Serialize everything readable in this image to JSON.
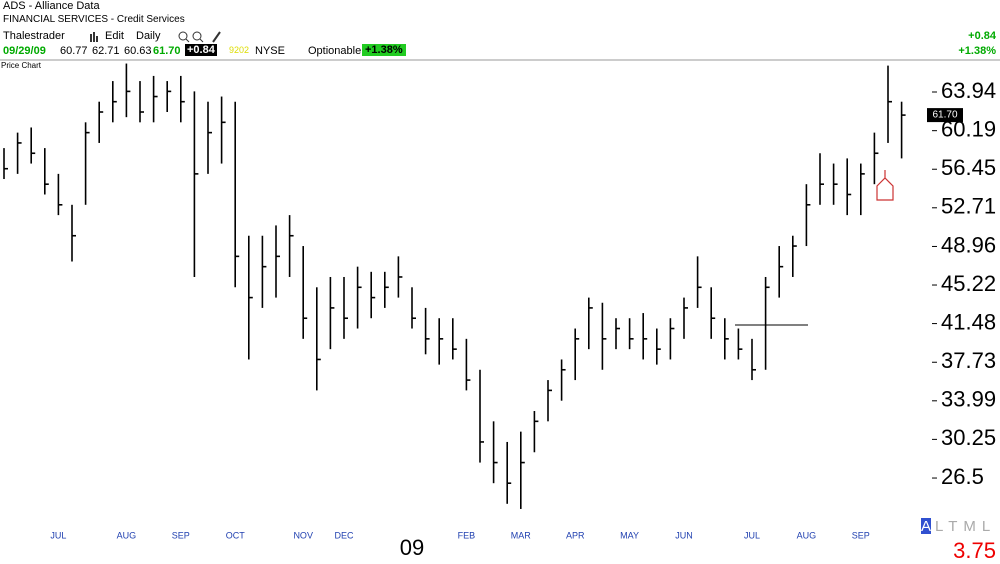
{
  "header": {
    "symbol": "ADS - Alliance Data",
    "industry": "FINANCIAL SERVICES - Credit Services",
    "user": "Thalestrader",
    "edit": "Edit",
    "period": "Daily",
    "quote": {
      "date": "09/29/09",
      "open": "60.77",
      "high": "62.71",
      "low": "60.63",
      "last": "61.70",
      "change": "+0.84",
      "volume": "9202",
      "exchange": "NYSE",
      "optionable": "Optionable",
      "pct": "+1.38%"
    },
    "right_change": "+0.84",
    "right_pct": "+1.38%",
    "panel": "Price Chart",
    "corner_letter": "A",
    "corner_rest": "LTML",
    "corner_value": "3.75"
  },
  "chart_data": {
    "type": "hlc",
    "color": "#000000",
    "categories": [
      null,
      null,
      null,
      null,
      "JUL",
      null,
      null,
      null,
      null,
      "AUG",
      null,
      null,
      null,
      "SEP",
      null,
      null,
      null,
      "OCT",
      null,
      null,
      null,
      null,
      "NOV",
      null,
      null,
      "DEC",
      null,
      null,
      null,
      null,
      "09",
      null,
      null,
      null,
      "FEB",
      null,
      null,
      null,
      "MAR",
      null,
      null,
      null,
      "APR",
      null,
      null,
      null,
      "MAY",
      null,
      null,
      null,
      "JUN",
      null,
      null,
      null,
      null,
      "JUL",
      null,
      null,
      null,
      "AUG",
      null,
      null,
      null,
      "SEP",
      null,
      null,
      null
    ],
    "high": [
      58.5,
      60,
      60.5,
      58.5,
      56,
      53,
      61,
      63,
      65,
      66.7,
      65,
      65.5,
      65,
      65.5,
      64,
      63,
      63.5,
      63,
      50,
      50,
      51,
      52,
      49,
      45,
      46,
      46,
      47,
      46.5,
      46.5,
      48,
      45,
      43,
      42,
      42,
      40,
      37,
      32,
      30,
      31,
      33,
      36,
      38,
      41,
      44,
      43.5,
      42,
      42,
      42.5,
      41,
      42,
      44,
      48,
      45,
      42,
      41,
      40,
      46,
      49,
      50,
      55,
      58,
      57,
      57.5,
      57,
      60,
      66.5,
      63
    ],
    "low": [
      55.5,
      56,
      57,
      54,
      52,
      47.5,
      53,
      59,
      61,
      61.5,
      61,
      61,
      62,
      61,
      46,
      56,
      57,
      45,
      38,
      43,
      44,
      46,
      40,
      35,
      39,
      40,
      41,
      42,
      43,
      44,
      41,
      38.5,
      37.5,
      38,
      35,
      28,
      26,
      24,
      23.5,
      29,
      32,
      34,
      36,
      39,
      37,
      39,
      39,
      38,
      37.5,
      38,
      40,
      43,
      40,
      38,
      38,
      36,
      37,
      44,
      46,
      49,
      53,
      53,
      52,
      52,
      55,
      59,
      57.5
    ],
    "close": [
      56.5,
      59,
      58,
      55,
      53,
      50,
      60,
      62,
      63,
      64,
      62,
      63.5,
      64,
      63,
      56,
      60,
      61,
      48,
      44,
      47,
      48,
      50,
      42,
      38,
      43,
      42,
      45,
      44,
      45,
      46,
      42,
      40,
      40,
      39,
      36,
      30,
      28,
      26,
      28,
      32,
      35,
      37,
      40,
      43,
      40,
      41,
      40,
      40,
      39,
      41,
      43,
      45,
      42,
      40,
      39,
      37,
      45,
      47,
      49,
      53,
      55,
      55,
      54,
      56,
      58,
      63,
      61.7
    ],
    "ylim": [
      22.43,
      66.85
    ],
    "yticks": [
      63.94,
      60.19,
      56.45,
      52.71,
      48.96,
      45.22,
      41.48,
      37.73,
      33.99,
      30.25,
      26.5
    ]
  }
}
